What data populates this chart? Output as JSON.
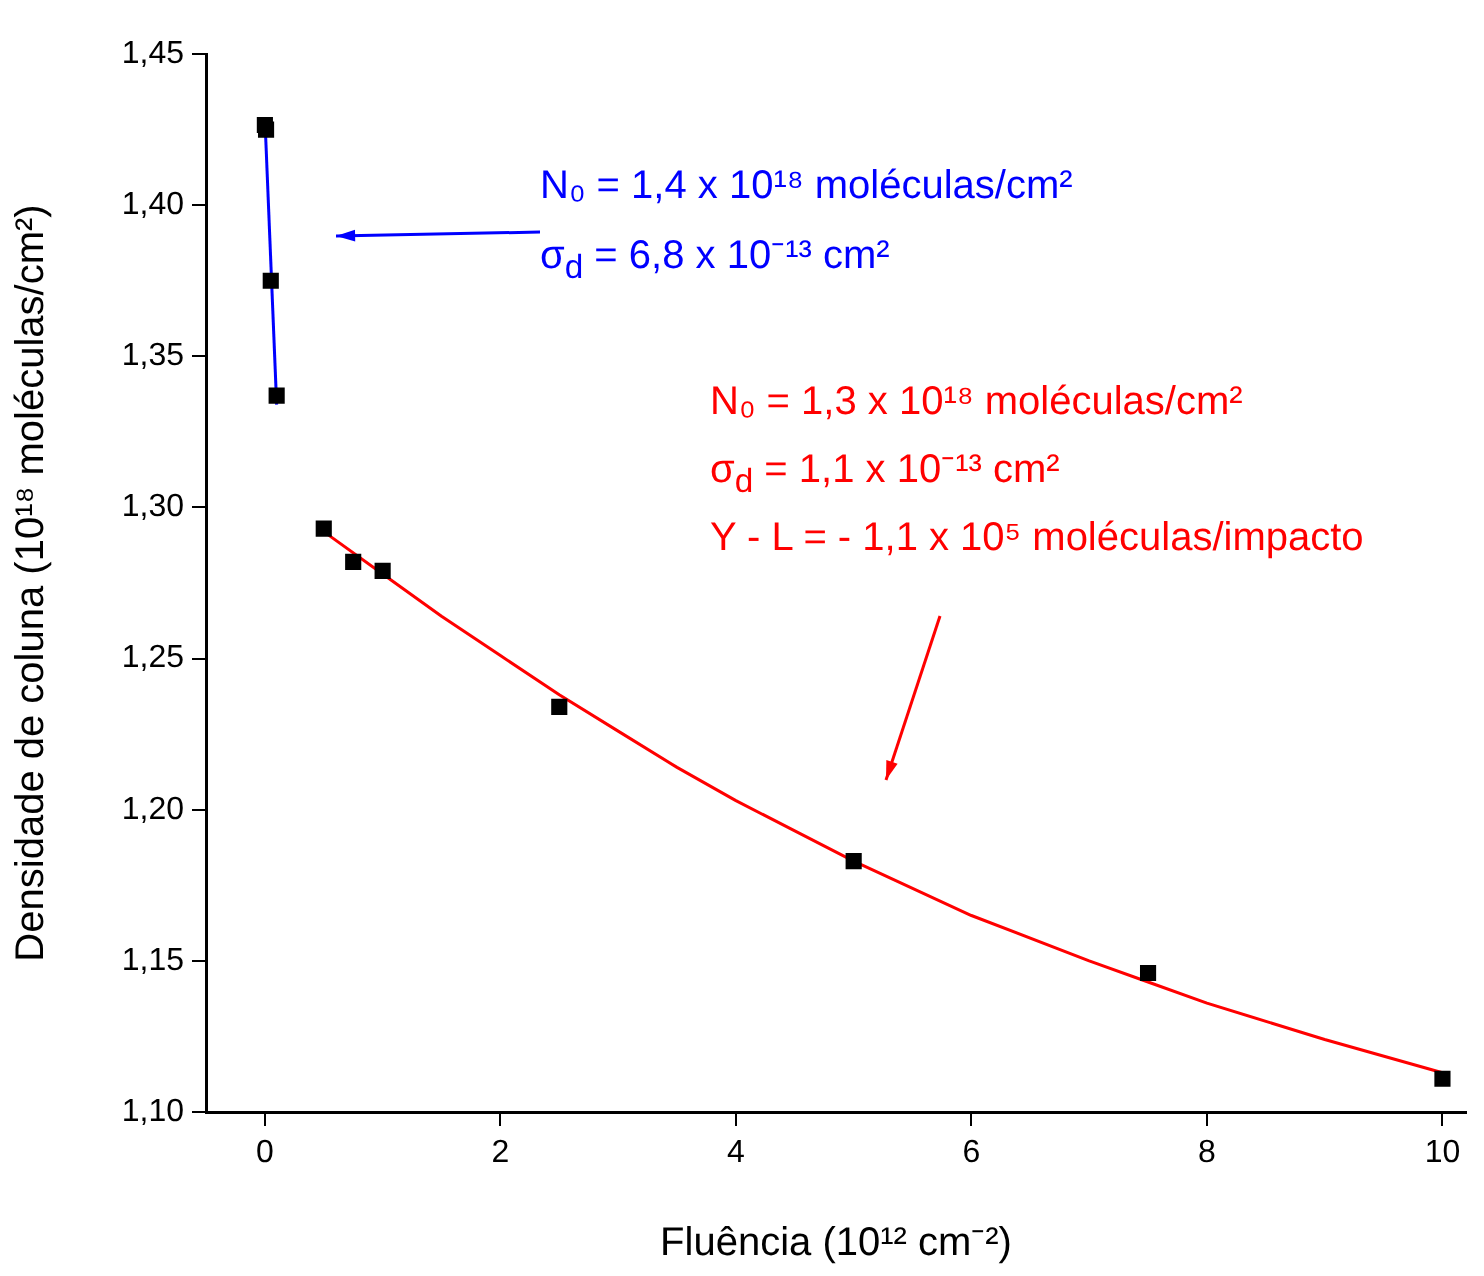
{
  "chart_data": {
    "type": "scatter",
    "xlabel": "Fluência (10¹² cm⁻²)",
    "ylabel": "Densidade de coluna (10¹⁸ moléculas/cm²)",
    "xlim": [
      -0.5,
      10.2
    ],
    "ylim": [
      1.1,
      1.45
    ],
    "xticks": [
      0,
      2,
      4,
      6,
      8,
      10
    ],
    "yticks": [
      {
        "value": 1.1,
        "label": "1,10"
      },
      {
        "value": 1.15,
        "label": "1,15"
      },
      {
        "value": 1.2,
        "label": "1,20"
      },
      {
        "value": 1.25,
        "label": "1,25"
      },
      {
        "value": 1.3,
        "label": "1,30"
      },
      {
        "value": 1.35,
        "label": "1,35"
      },
      {
        "value": 1.4,
        "label": "1,40"
      },
      {
        "value": 1.45,
        "label": "1,45"
      }
    ],
    "series": [
      {
        "marker": "square",
        "color": "#000000",
        "x": [
          0,
          0.01,
          0.05,
          0.1,
          0.5,
          0.75,
          1,
          2.5,
          5,
          7.5,
          10
        ],
        "values": [
          1.4265,
          1.425,
          1.375,
          1.337,
          1.293,
          1.282,
          1.279,
          1.234,
          1.183,
          1.146,
          1.111
        ]
      },
      {
        "type": "line",
        "color": "#0000ff",
        "x": [
          0,
          0.1
        ],
        "values": [
          1.429,
          1.334
        ]
      },
      {
        "type": "line",
        "color": "#ff0000",
        "x": [
          0.5,
          1,
          1.5,
          2,
          2.5,
          3,
          3.5,
          4,
          4.5,
          5,
          6,
          7,
          7.5,
          8,
          9,
          10
        ],
        "values": [
          1.292,
          1.278,
          1.264,
          1.251,
          1.238,
          1.226,
          1.214,
          1.203,
          1.193,
          1.183,
          1.165,
          1.15,
          1.143,
          1.136,
          1.124,
          1.113
        ]
      }
    ],
    "annotations": [
      "N₀ = 1,4 x 10¹⁸ moléculas/cm²",
      "σ$_{d}$ = 6,8 x 10⁻¹³ cm²",
      "N₀ = 1,3 x 10¹⁸ moléculas/cm²",
      "σ$_{d}$ = 1,1 x 10⁻¹³ cm²",
      "Y - L = - 1,1 x 10⁵ moléculas/impacto"
    ]
  }
}
